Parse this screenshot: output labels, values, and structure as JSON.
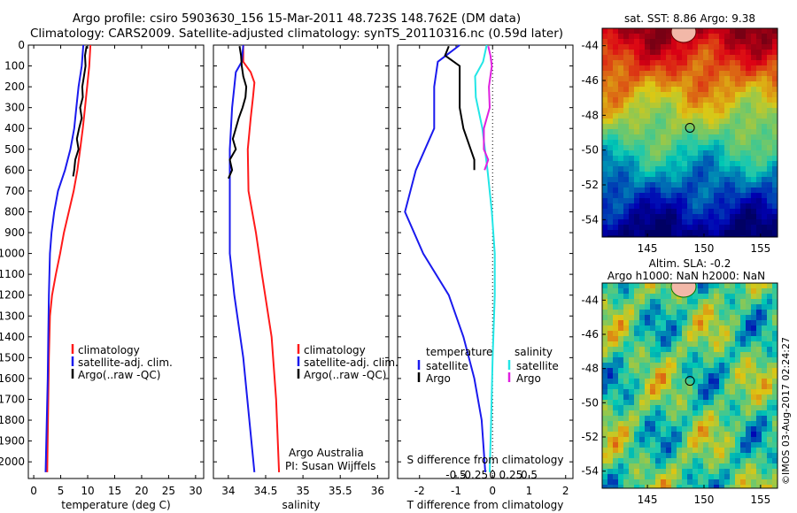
{
  "title_line1": "Argo profile: csiro 5903630_156 15-Mar-2011 48.723S 148.762E (DM data)",
  "title_line2": "Climatology: CARS2009. Satellite-adjusted climatology: synTS_20110316.nc (0.59d later)",
  "watermark": "©IMOS 03-Aug-2017 02:24:27",
  "colors": {
    "climatology": "#ff1a1a",
    "satellite": "#1a1aee",
    "argo": "#000000",
    "cyan": "#22e6e6",
    "magenta": "#e020e0"
  },
  "chart_data": [
    {
      "type": "line",
      "xlabel": "temperature (deg C)",
      "xlim": [
        -1,
        31.5
      ],
      "xticks": [
        "0",
        "5",
        "10",
        "15",
        "20",
        "25",
        "30"
      ],
      "ylim": [
        0,
        2080
      ],
      "yticks": [
        "0",
        "100",
        "200",
        "300",
        "400",
        "500",
        "600",
        "700",
        "800",
        "900",
        "1000",
        "1100",
        "1200",
        "1300",
        "1400",
        "1500",
        "1600",
        "1700",
        "1800",
        "1900",
        "2000"
      ],
      "legend": [
        "climatology",
        "satellite-adj. clim.",
        "Argo(..raw -QC)"
      ],
      "series": [
        {
          "name": "climatology",
          "depth": [
            0,
            100,
            200,
            300,
            400,
            500,
            600,
            700,
            800,
            900,
            1000,
            1100,
            1200,
            1300,
            1500,
            2050
          ],
          "values": [
            10.5,
            10.3,
            9.9,
            9.5,
            9.1,
            8.6,
            8.1,
            7.4,
            6.5,
            5.6,
            4.9,
            4.1,
            3.4,
            3.0,
            2.8,
            2.5
          ]
        },
        {
          "name": "satellite-adj. clim.",
          "depth": [
            0,
            100,
            200,
            300,
            400,
            500,
            600,
            700,
            800,
            900,
            1000,
            1200,
            1400,
            1600,
            2050
          ],
          "values": [
            9.2,
            8.9,
            8.3,
            7.9,
            7.5,
            6.8,
            5.8,
            4.5,
            3.8,
            3.3,
            3.0,
            2.8,
            2.7,
            2.6,
            2.2
          ]
        },
        {
          "name": "Argo(..raw -QC)",
          "depth": [
            5,
            50,
            100,
            150,
            200,
            250,
            300,
            350,
            400,
            450,
            500,
            550,
            600,
            630
          ],
          "values": [
            9.8,
            9.5,
            9.6,
            9.3,
            9.0,
            9.1,
            8.6,
            8.9,
            8.4,
            8.0,
            8.3,
            7.7,
            7.5,
            7.3
          ]
        }
      ]
    },
    {
      "type": "line",
      "xlabel": "salinity",
      "xlim": [
        33.8,
        36.15
      ],
      "xticks": [
        "34",
        "34.5",
        "35",
        "35.5",
        "36"
      ],
      "ylim": [
        0,
        2080
      ],
      "legend": [
        "climatology",
        "satellite-adj. clim.",
        "Argo(..raw -QC)"
      ],
      "annotation": [
        "Argo Australia",
        "PI: Susan Wijffels"
      ],
      "series": [
        {
          "name": "climatology",
          "depth": [
            0,
            80,
            130,
            180,
            250,
            350,
            500,
            700,
            900,
            1100,
            1400,
            1700,
            2050
          ],
          "values": [
            34.2,
            34.2,
            34.3,
            34.35,
            34.33,
            34.3,
            34.26,
            34.27,
            34.37,
            34.45,
            34.58,
            34.64,
            34.68
          ]
        },
        {
          "name": "satellite-adj. clim.",
          "depth": [
            0,
            80,
            130,
            200,
            300,
            500,
            700,
            900,
            1000,
            1200,
            1500,
            2050
          ],
          "values": [
            34.2,
            34.18,
            34.1,
            34.08,
            34.05,
            34.02,
            34.02,
            34.02,
            34.02,
            34.08,
            34.2,
            34.35
          ]
        },
        {
          "name": "Argo(..raw -QC)",
          "depth": [
            5,
            50,
            100,
            150,
            200,
            250,
            300,
            350,
            400,
            450,
            500,
            550,
            600,
            640
          ],
          "values": [
            34.15,
            34.17,
            34.18,
            34.2,
            34.24,
            34.23,
            34.19,
            34.14,
            34.1,
            34.06,
            34.1,
            34.02,
            34.05,
            34.0
          ]
        }
      ]
    },
    {
      "type": "line",
      "xlabel": "T difference from climatology",
      "x2label": "S difference from climatology",
      "xlim": [
        -2.6,
        2.2
      ],
      "xticks": [
        "-2",
        "-1",
        "0",
        "1",
        "2"
      ],
      "x2ticks": [
        "-0.5",
        "-0.25",
        "0",
        "0.25",
        "0.5"
      ],
      "ylim": [
        0,
        2080
      ],
      "legend": {
        "temperature": [
          "satellite",
          "Argo"
        ],
        "salinity": [
          "satellite",
          "Argo"
        ]
      },
      "series": [
        {
          "name": "temperature satellite",
          "depth": [
            0,
            80,
            200,
            400,
            600,
            800,
            1000,
            1200,
            1400,
            1600,
            1800,
            2050
          ],
          "values": [
            -0.9,
            -1.5,
            -1.6,
            -1.6,
            -2.1,
            -2.4,
            -1.9,
            -1.2,
            -0.8,
            -0.5,
            -0.3,
            -0.2
          ]
        },
        {
          "name": "temperature Argo",
          "depth": [
            5,
            50,
            100,
            200,
            300,
            400,
            500,
            550,
            600
          ],
          "values": [
            -1.2,
            -1.3,
            -0.9,
            -0.9,
            -0.9,
            -0.8,
            -0.6,
            -0.5,
            -0.5
          ]
        },
        {
          "name": "salinity satellite",
          "depth": [
            0,
            80,
            150,
            250,
            400,
            600,
            800,
            1000,
            1200,
            1500,
            1800,
            2050
          ],
          "values": [
            -0.08,
            -0.13,
            -0.24,
            -0.23,
            -0.14,
            -0.07,
            -0.01,
            0.03,
            0.03,
            0.0,
            -0.02,
            -0.04
          ]
        },
        {
          "name": "salinity Argo",
          "depth": [
            5,
            50,
            100,
            200,
            300,
            400,
            500,
            550,
            600
          ],
          "values": [
            -0.06,
            -0.03,
            -0.01,
            -0.05,
            -0.04,
            -0.12,
            -0.12,
            -0.06,
            -0.11
          ]
        }
      ]
    },
    {
      "type": "heatmap",
      "title": "sat. SST: 8.86  Argo: 9.38",
      "xticks": [
        "145",
        "150",
        "155"
      ],
      "yticks": [
        "-44",
        "-46",
        "-48",
        "-50",
        "-52",
        "-54"
      ],
      "xlim": [
        141,
        156.5
      ],
      "ylim": [
        -55,
        -43
      ],
      "marker": {
        "lon": 148.76,
        "lat": -48.72
      }
    },
    {
      "type": "heatmap",
      "title": "Altim. SLA: -0.2",
      "subtitle": "Argo h1000: NaN h2000: NaN",
      "xticks": [
        "145",
        "150",
        "155"
      ],
      "yticks": [
        "-44",
        "-46",
        "-48",
        "-50",
        "-52",
        "-54"
      ],
      "xlim": [
        141,
        156.5
      ],
      "ylim": [
        -55,
        -43
      ],
      "marker": {
        "lon": 148.76,
        "lat": -48.72
      }
    }
  ]
}
